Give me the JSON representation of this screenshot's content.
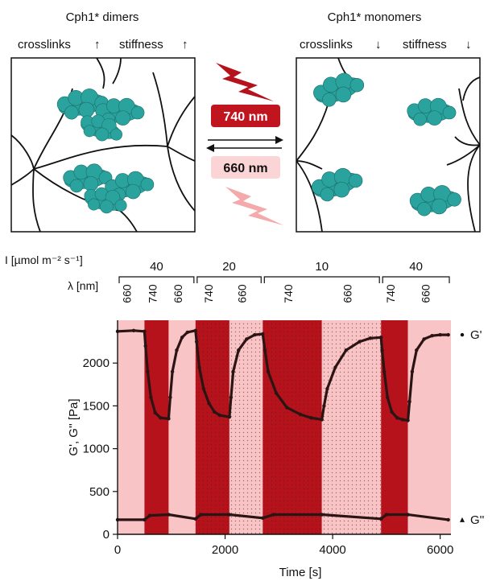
{
  "schematic": {
    "left_title": "Cph1* dimers",
    "right_title": "Cph1* monomers",
    "left_crosslinks": "crosslinks",
    "left_stiffness": "stiffness",
    "right_crosslinks": "crosslinks",
    "right_stiffness": "stiffness",
    "forward_wavelength": "740 nm",
    "reverse_wavelength": "660 nm",
    "protein_color": "#2aa39e",
    "dark_red": "#b5121b",
    "light_red": "#f4a9ab"
  },
  "chart_data": {
    "type": "line",
    "xlabel": "Time [s]",
    "ylabel": "G', G'' [Pa]",
    "xlim": [
      0,
      6200
    ],
    "ylim": [
      0,
      2500
    ],
    "xticks": [
      0,
      2000,
      4000,
      6000
    ],
    "yticks": [
      0,
      500,
      1000,
      1500,
      2000
    ],
    "grid": false,
    "intensity_label": "I [µmol m⁻² s⁻¹]",
    "wavelength_label": "λ [nm]",
    "intensity_groups": [
      {
        "label": "40",
        "start": 0,
        "end": 1450
      },
      {
        "label": "20",
        "start": 1450,
        "end": 2700
      },
      {
        "label": "10",
        "start": 2700,
        "end": 4900
      },
      {
        "label": "40",
        "start": 4900,
        "end": 6200
      }
    ],
    "segments": [
      {
        "wavelength": "660",
        "start": 0,
        "end": 500,
        "shade": "light",
        "dotted": false
      },
      {
        "wavelength": "740",
        "start": 500,
        "end": 950,
        "shade": "dark",
        "dotted": false
      },
      {
        "wavelength": "660",
        "start": 950,
        "end": 1450,
        "shade": "light",
        "dotted": false
      },
      {
        "wavelength": "740",
        "start": 1450,
        "end": 2080,
        "shade": "dark",
        "dotted": true
      },
      {
        "wavelength": "660",
        "start": 2080,
        "end": 2700,
        "shade": "light",
        "dotted": true
      },
      {
        "wavelength": "740",
        "start": 2700,
        "end": 3800,
        "shade": "dark",
        "dotted": true
      },
      {
        "wavelength": "660",
        "start": 3800,
        "end": 4900,
        "shade": "light",
        "dotted": true
      },
      {
        "wavelength": "740",
        "start": 4900,
        "end": 5400,
        "shade": "dark",
        "dotted": false
      },
      {
        "wavelength": "660",
        "start": 5400,
        "end": 6200,
        "shade": "light",
        "dotted": false
      }
    ],
    "series": [
      {
        "name": "G'",
        "marker": "circle",
        "x": [
          0,
          300,
          500,
          520,
          560,
          620,
          700,
          800,
          950,
          980,
          1020,
          1100,
          1200,
          1300,
          1450,
          1470,
          1520,
          1600,
          1700,
          1800,
          1900,
          2080,
          2110,
          2150,
          2250,
          2400,
          2550,
          2700,
          2740,
          2800,
          2950,
          3150,
          3400,
          3600,
          3800,
          3840,
          3900,
          4050,
          4250,
          4500,
          4700,
          4900,
          4920,
          4960,
          5020,
          5100,
          5200,
          5300,
          5400,
          5430,
          5480,
          5560,
          5700,
          5850,
          6000,
          6150
        ],
        "values": [
          2370,
          2380,
          2370,
          2200,
          1900,
          1600,
          1420,
          1360,
          1350,
          1600,
          1900,
          2150,
          2300,
          2360,
          2380,
          2250,
          1950,
          1700,
          1530,
          1430,
          1390,
          1370,
          1600,
          1900,
          2150,
          2280,
          2330,
          2340,
          2150,
          1900,
          1650,
          1480,
          1400,
          1360,
          1340,
          1500,
          1700,
          1950,
          2150,
          2250,
          2290,
          2300,
          2150,
          1900,
          1600,
          1430,
          1360,
          1340,
          1330,
          1550,
          1900,
          2150,
          2280,
          2320,
          2330,
          2330
        ]
      },
      {
        "name": "G''",
        "marker": "triangle",
        "x": [
          0,
          500,
          600,
          950,
          1450,
          1550,
          2080,
          2700,
          2900,
          3800,
          4900,
          5000,
          5400,
          6150
        ],
        "values": [
          170,
          170,
          220,
          230,
          180,
          230,
          230,
          190,
          230,
          230,
          180,
          230,
          230,
          170
        ]
      }
    ]
  }
}
